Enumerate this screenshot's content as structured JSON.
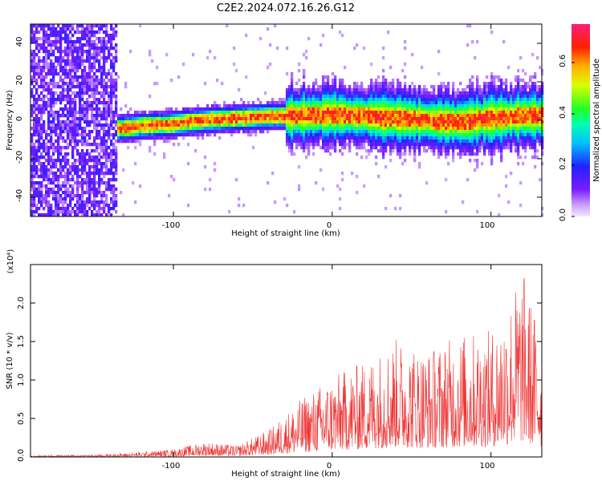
{
  "title": "C2E2.2024.072.16.26.G12",
  "colors": {
    "snr_line": "#ee3333",
    "axis": "#000000"
  },
  "chart_data": [
    {
      "type": "heatmap",
      "xlabel": "Height of straight line (km)",
      "ylabel": "Frequency (Hz)",
      "xlim": [
        -190,
        132
      ],
      "ylim": [
        -50,
        50
      ],
      "xticks": [
        "-100",
        "0",
        "100"
      ],
      "yticks": [
        "-40",
        "-20",
        "0",
        "20",
        "40"
      ],
      "colorbar": {
        "label": "Normalized spectral amplitude",
        "range": [
          0.0,
          0.75
        ],
        "ticks": [
          "0.0",
          "0.2",
          "0.4",
          "0.6"
        ],
        "colormap": "rainbow (purple-blue-cyan-green-yellow-red-magenta)"
      },
      "ridge": [
        {
          "x": -140,
          "y": -5
        },
        {
          "x": -120,
          "y": -3
        },
        {
          "x": -100,
          "y": -2
        },
        {
          "x": -80,
          "y": 0
        },
        {
          "x": -60,
          "y": 1
        },
        {
          "x": -40,
          "y": 2
        },
        {
          "x": -20,
          "y": 2
        },
        {
          "x": 0,
          "y": 3
        },
        {
          "x": 20,
          "y": 2
        },
        {
          "x": 40,
          "y": 1
        },
        {
          "x": 60,
          "y": 0
        },
        {
          "x": 80,
          "y": -1
        },
        {
          "x": 100,
          "y": 1
        },
        {
          "x": 120,
          "y": 2
        }
      ]
    },
    {
      "type": "line",
      "xlabel": "Height of straight line (km)",
      "ylabel": "SNR (10 * v/v)",
      "yscale_label": "(x10⁴)",
      "xlim": [
        -190,
        132
      ],
      "ylim": [
        0,
        2.5
      ],
      "xticks": [
        "-100",
        "0",
        "100"
      ],
      "yticks": [
        "0.0",
        "0.5",
        "1.0",
        "1.5",
        "2.0"
      ],
      "envelope": [
        {
          "x": -190,
          "y": 0.02
        },
        {
          "x": -150,
          "y": 0.03
        },
        {
          "x": -130,
          "y": 0.05
        },
        {
          "x": -100,
          "y": 0.1
        },
        {
          "x": -80,
          "y": 0.2
        },
        {
          "x": -60,
          "y": 0.15
        },
        {
          "x": -40,
          "y": 0.35
        },
        {
          "x": -20,
          "y": 0.75
        },
        {
          "x": 0,
          "y": 1.05
        },
        {
          "x": 20,
          "y": 1.25
        },
        {
          "x": 40,
          "y": 1.55
        },
        {
          "x": 60,
          "y": 1.4
        },
        {
          "x": 80,
          "y": 1.6
        },
        {
          "x": 100,
          "y": 1.65
        },
        {
          "x": 110,
          "y": 2.0
        },
        {
          "x": 120,
          "y": 2.45
        },
        {
          "x": 132,
          "y": 1.55
        }
      ]
    }
  ]
}
